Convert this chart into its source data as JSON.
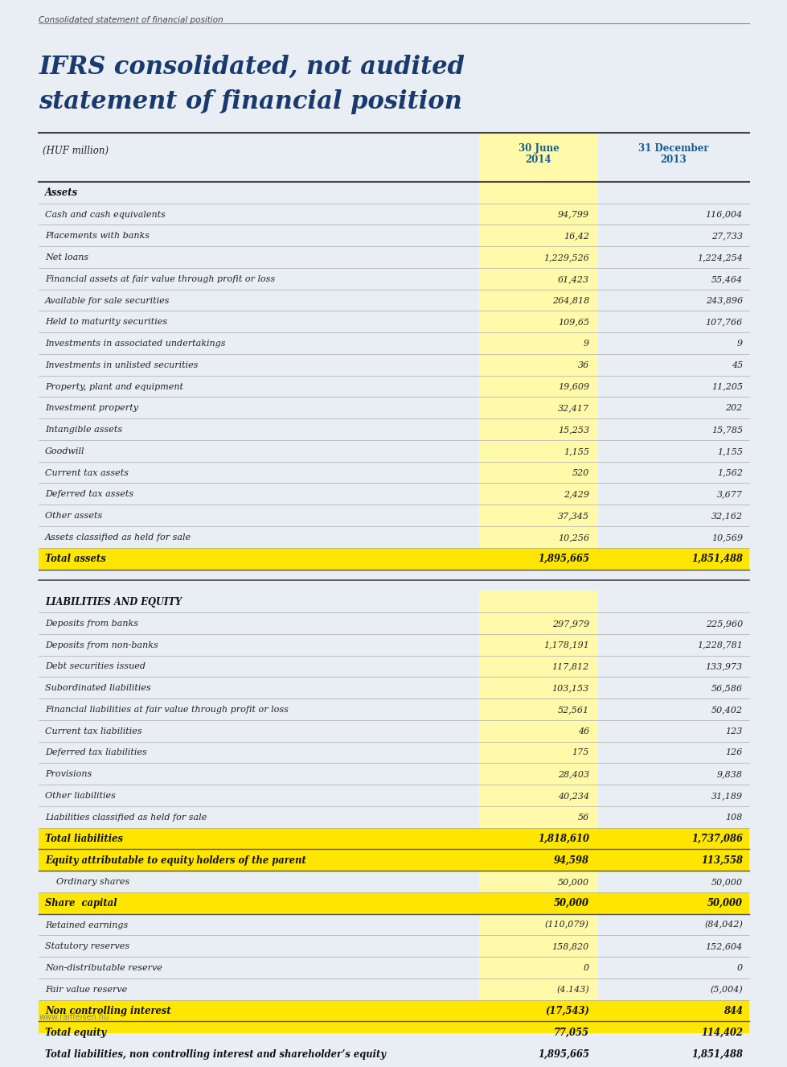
{
  "page_label": "Consolidated statement of financial position",
  "title_line1": "IFRS consolidated, not audited",
  "title_line2": "statement of financial position",
  "header_col1": "(HUF million)",
  "header_col2_line1": "30 June",
  "header_col2_line2": "2014",
  "header_col3_line1": "31 December",
  "header_col3_line2": "2013",
  "bg_color": "#e8eef4",
  "title_color": "#1a3a6e",
  "header_num_color": "#1a5c8a",
  "yellow_highlight": "#ffe600",
  "yellow_col2": "#fffaaa",
  "rows": [
    {
      "label": "Assets",
      "v1": "",
      "v2": "",
      "style": "section_header"
    },
    {
      "label": "Cash and cash equivalents",
      "v1": "94,799",
      "v2": "116,004",
      "style": "normal"
    },
    {
      "label": "Placements with banks",
      "v1": "16,42",
      "v2": "27,733",
      "style": "normal"
    },
    {
      "label": "Net loans",
      "v1": "1,229,526",
      "v2": "1,224,254",
      "style": "normal"
    },
    {
      "label": "Financial assets at fair value through profit or loss",
      "v1": "61,423",
      "v2": "55,464",
      "style": "normal"
    },
    {
      "label": "Available for sale securities",
      "v1": "264,818",
      "v2": "243,896",
      "style": "normal"
    },
    {
      "label": "Held to maturity securities",
      "v1": "109,65",
      "v2": "107,766",
      "style": "normal"
    },
    {
      "label": "Investments in associated undertakings",
      "v1": "9",
      "v2": "9",
      "style": "normal"
    },
    {
      "label": "Investments in unlisted securities",
      "v1": "36",
      "v2": "45",
      "style": "normal"
    },
    {
      "label": "Property, plant and equipment",
      "v1": "19,609",
      "v2": "11,205",
      "style": "normal"
    },
    {
      "label": "Investment property",
      "v1": "32,417",
      "v2": "202",
      "style": "normal"
    },
    {
      "label": "Intangible assets",
      "v1": "15,253",
      "v2": "15,785",
      "style": "normal"
    },
    {
      "label": "Goodwill",
      "v1": "1,155",
      "v2": "1,155",
      "style": "normal"
    },
    {
      "label": "Current tax assets",
      "v1": "520",
      "v2": "1,562",
      "style": "normal"
    },
    {
      "label": "Deferred tax assets",
      "v1": "2,429",
      "v2": "3,677",
      "style": "normal"
    },
    {
      "label": "Other assets",
      "v1": "37,345",
      "v2": "32,162",
      "style": "normal"
    },
    {
      "label": "Assets classified as held for sale",
      "v1": "10,256",
      "v2": "10,569",
      "style": "normal"
    },
    {
      "label": "Total assets",
      "v1": "1,895,665",
      "v2": "1,851,488",
      "style": "total_yellow"
    },
    {
      "label": "",
      "v1": "",
      "v2": "",
      "style": "spacer"
    },
    {
      "label": "LIABILITIES AND EQUITY",
      "v1": "",
      "v2": "",
      "style": "section_header"
    },
    {
      "label": "Deposits from banks",
      "v1": "297,979",
      "v2": "225,960",
      "style": "normal"
    },
    {
      "label": "Deposits from non-banks",
      "v1": "1,178,191",
      "v2": "1,228,781",
      "style": "normal"
    },
    {
      "label": "Debt securities issued",
      "v1": "117,812",
      "v2": "133,973",
      "style": "normal"
    },
    {
      "label": "Subordinated liabilities",
      "v1": "103,153",
      "v2": "56,586",
      "style": "normal"
    },
    {
      "label": "Financial liabilities at fair value through profit or loss",
      "v1": "52,561",
      "v2": "50,402",
      "style": "normal"
    },
    {
      "label": "Current tax liabilities",
      "v1": "46",
      "v2": "123",
      "style": "normal"
    },
    {
      "label": "Deferred tax liabilities",
      "v1": "175",
      "v2": "126",
      "style": "normal"
    },
    {
      "label": "Provisions",
      "v1": "28,403",
      "v2": "9,838",
      "style": "normal"
    },
    {
      "label": "Other liabilities",
      "v1": "40,234",
      "v2": "31,189",
      "style": "normal"
    },
    {
      "label": "Liabilities classified as held for sale",
      "v1": "56",
      "v2": "108",
      "style": "normal"
    },
    {
      "label": "Total liabilities",
      "v1": "1,818,610",
      "v2": "1,737,086",
      "style": "total_yellow"
    },
    {
      "label": "Equity attributable to equity holders of the parent",
      "v1": "94,598",
      "v2": "113,558",
      "style": "total_yellow"
    },
    {
      "label": "    Ordinary shares",
      "v1": "50,000",
      "v2": "50,000",
      "style": "normal"
    },
    {
      "label": "Share  capital",
      "v1": "50,000",
      "v2": "50,000",
      "style": "total_yellow"
    },
    {
      "label": "Retained earnings",
      "v1": "(110,079)",
      "v2": "(84,042)",
      "style": "normal"
    },
    {
      "label": "Statutory reserves",
      "v1": "158,820",
      "v2": "152,604",
      "style": "normal"
    },
    {
      "label": "Non-distributable reserve",
      "v1": "0",
      "v2": "0",
      "style": "normal"
    },
    {
      "label": "Fair value reserve",
      "v1": "(4.143)",
      "v2": "(5,004)",
      "style": "normal"
    },
    {
      "label": "Non controlling interest",
      "v1": "(17,543)",
      "v2": "844",
      "style": "total_yellow"
    },
    {
      "label": "Total equity",
      "v1": "77,055",
      "v2": "114,402",
      "style": "total_yellow"
    },
    {
      "label": "Total liabilities, non controlling interest and shareholder’s equity",
      "v1": "1,895,665",
      "v2": "1,851,488",
      "style": "total_yellow"
    }
  ],
  "footer": "www.raiffeisen.hu"
}
